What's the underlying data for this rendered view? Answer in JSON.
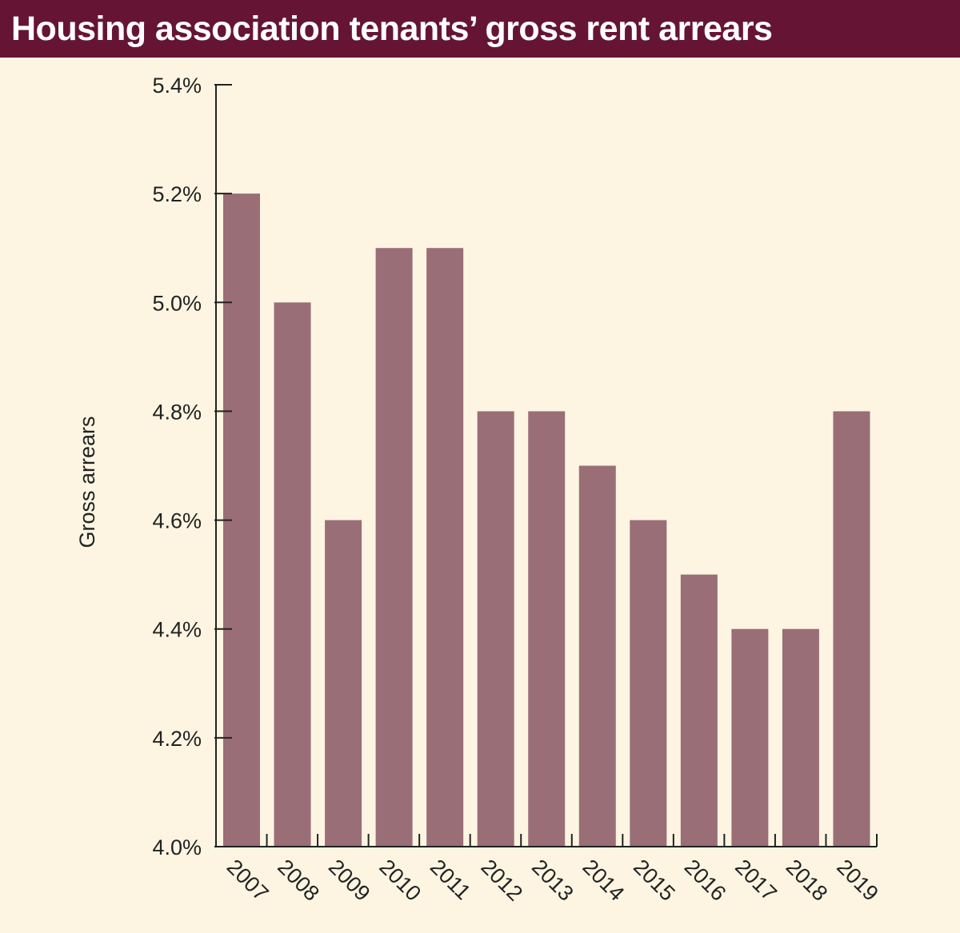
{
  "title": "Housing association tenants’ gross rent arrears",
  "colors": {
    "title_bg": "#651533",
    "background": "#fdf5e2",
    "bar": "#9a6e76",
    "axis": "#222222"
  },
  "chart_data": {
    "type": "bar",
    "title": "Housing association tenants’ gross rent arrears",
    "xlabel": "",
    "ylabel": "Gross arrears",
    "categories": [
      "2007",
      "2008",
      "2009",
      "2010",
      "2011",
      "2012",
      "2013",
      "2014",
      "2015",
      "2016",
      "2017",
      "2018",
      "2019"
    ],
    "values": [
      5.2,
      5.0,
      4.6,
      5.1,
      5.1,
      4.8,
      4.8,
      4.7,
      4.6,
      4.5,
      4.4,
      4.4,
      4.8
    ],
    "unit": "%",
    "ylim": [
      4.0,
      5.4
    ],
    "yticks": [
      "4.0%",
      "4.2%",
      "4.4%",
      "4.6%",
      "4.8%",
      "5.0%",
      "5.2%",
      "5.4%"
    ],
    "grid": false,
    "legend": "none"
  }
}
